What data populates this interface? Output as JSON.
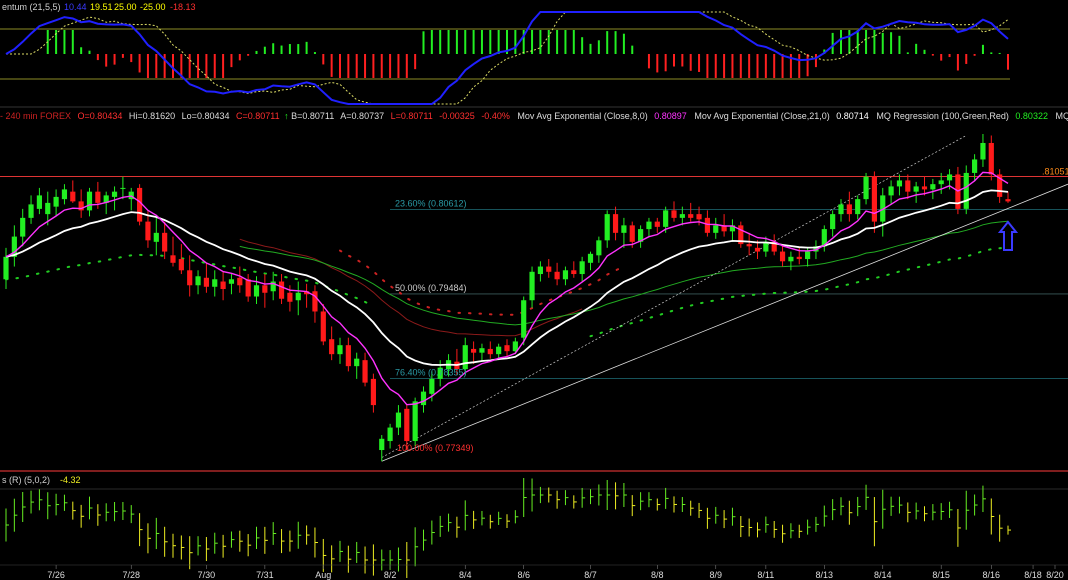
{
  "colors": {
    "background": "#000000",
    "up": "#22ee22",
    "down": "#ff1a1a",
    "ema8": "#ff33ff",
    "ema21": "#ffffff",
    "regression": "#22aa22",
    "trend": "#cc2222",
    "fib": "#1f6f78",
    "level": "#ff3b3b",
    "momentum_line": "#2020ff",
    "signal_line": "#dddd66",
    "osc_up": "#66ee22",
    "osc_down": "#eeee22",
    "arrow": "#3a3aff"
  },
  "momentum_panel": {
    "title": "entum (21,5,5)",
    "values": [
      "10.44",
      "19.51",
      "25.00",
      "-25.00",
      "-18.13"
    ],
    "value_colors": [
      "#3a3aff",
      "#ffff00",
      "#ffff00",
      "#ffff00",
      "#ff3030"
    ]
  },
  "price_header": {
    "prefix": "- 240 min  FOREX",
    "open": "O=0.80434",
    "high": "Hi=0.81620",
    "low": "Lo=0.80434",
    "close": "C=0.80711",
    "arrow": "↑",
    "bid": "B=0.80711",
    "ask": "A=0.80737",
    "last": "L=0.80711",
    "change": "-0.00325",
    "change_pct": "-0.40%",
    "ema8_label": "Mov Avg Exponential (Close,8,0)",
    "ema8_value": "0.80897",
    "ema21_label": "Mov Avg Exponential (Close,21,0)",
    "ema21_value": "0.80714",
    "regression_label": "MQ Regression (100,Green,Red)",
    "regression_value": "0.80322",
    "trend_label": "MQ Trend (Close"
  },
  "oscillator_panel": {
    "title": "s (R) (5,0,2)",
    "value": "-4.32"
  },
  "price_axis": {
    "level_label": ".81051"
  },
  "fib_labels": {
    "fib236": "23.60% (0.80612)",
    "fib50": "50.00% (0.79484)",
    "fib764": "76.40% (0.78355)",
    "fib100": "100.00% (0.77349)"
  },
  "chart_data": {
    "type": "candlestick",
    "instrument": "FOREX",
    "interval": "240 min",
    "x_tick_labels": [
      "7/26",
      "7/28",
      "7/30",
      "7/31",
      "Aug",
      "8/2",
      "8/4",
      "8/6",
      "8/7",
      "8/8",
      "8/9",
      "8/11",
      "8/13",
      "8/14",
      "8/15",
      "8/16",
      "8/18",
      "8/20"
    ],
    "ylim": [
      0.7712,
      0.8174
    ],
    "resistance_level": 0.81051,
    "fib_levels": [
      {
        "label": "23.60%",
        "value": 0.80612
      },
      {
        "label": "50.00%",
        "value": 0.79484
      },
      {
        "label": "76.40%",
        "value": 0.78355
      },
      {
        "label": "100.00%",
        "value": 0.77349
      }
    ],
    "candles": [
      {
        "o": 0.7968,
        "h": 0.801,
        "l": 0.7955,
        "c": 0.7998
      },
      {
        "o": 0.7998,
        "h": 0.804,
        "l": 0.7985,
        "c": 0.8025
      },
      {
        "o": 0.8025,
        "h": 0.8062,
        "l": 0.8012,
        "c": 0.805
      },
      {
        "o": 0.805,
        "h": 0.808,
        "l": 0.8042,
        "c": 0.8068
      },
      {
        "o": 0.8062,
        "h": 0.809,
        "l": 0.8055,
        "c": 0.808
      },
      {
        "o": 0.8055,
        "h": 0.8085,
        "l": 0.804,
        "c": 0.807
      },
      {
        "o": 0.8065,
        "h": 0.8088,
        "l": 0.8052,
        "c": 0.8078
      },
      {
        "o": 0.8075,
        "h": 0.8095,
        "l": 0.8068,
        "c": 0.8088
      },
      {
        "o": 0.8085,
        "h": 0.81,
        "l": 0.807,
        "c": 0.8072
      },
      {
        "o": 0.8072,
        "h": 0.8088,
        "l": 0.805,
        "c": 0.806
      },
      {
        "o": 0.806,
        "h": 0.809,
        "l": 0.8052,
        "c": 0.8085
      },
      {
        "o": 0.8085,
        "h": 0.8098,
        "l": 0.8062,
        "c": 0.807
      },
      {
        "o": 0.807,
        "h": 0.8085,
        "l": 0.8055,
        "c": 0.808
      },
      {
        "o": 0.8078,
        "h": 0.8092,
        "l": 0.806,
        "c": 0.8085
      },
      {
        "o": 0.809,
        "h": 0.8105,
        "l": 0.8075,
        "c": 0.809
      },
      {
        "o": 0.8075,
        "h": 0.809,
        "l": 0.806,
        "c": 0.8085
      },
      {
        "o": 0.809,
        "h": 0.8095,
        "l": 0.804,
        "c": 0.8045
      },
      {
        "o": 0.8045,
        "h": 0.806,
        "l": 0.801,
        "c": 0.802
      },
      {
        "o": 0.8018,
        "h": 0.8052,
        "l": 0.8,
        "c": 0.803
      },
      {
        "o": 0.803,
        "h": 0.8045,
        "l": 0.7995,
        "c": 0.8005
      },
      {
        "o": 0.8,
        "h": 0.8025,
        "l": 0.7985,
        "c": 0.799
      },
      {
        "o": 0.7995,
        "h": 0.8015,
        "l": 0.7975,
        "c": 0.798
      },
      {
        "o": 0.798,
        "h": 0.8,
        "l": 0.7945,
        "c": 0.796
      },
      {
        "o": 0.796,
        "h": 0.798,
        "l": 0.7948,
        "c": 0.7972
      },
      {
        "o": 0.797,
        "h": 0.799,
        "l": 0.795,
        "c": 0.7958
      },
      {
        "o": 0.7958,
        "h": 0.798,
        "l": 0.7945,
        "c": 0.7968
      },
      {
        "o": 0.7965,
        "h": 0.7978,
        "l": 0.794,
        "c": 0.7955
      },
      {
        "o": 0.7962,
        "h": 0.7975,
        "l": 0.7948,
        "c": 0.7968
      },
      {
        "o": 0.797,
        "h": 0.7985,
        "l": 0.795,
        "c": 0.796
      },
      {
        "o": 0.7968,
        "h": 0.7975,
        "l": 0.7938,
        "c": 0.7945
      },
      {
        "o": 0.7945,
        "h": 0.7972,
        "l": 0.7935,
        "c": 0.796
      },
      {
        "o": 0.796,
        "h": 0.7975,
        "l": 0.793,
        "c": 0.795
      },
      {
        "o": 0.7952,
        "h": 0.7978,
        "l": 0.794,
        "c": 0.7965
      },
      {
        "o": 0.7965,
        "h": 0.7975,
        "l": 0.7935,
        "c": 0.7942
      },
      {
        "o": 0.795,
        "h": 0.796,
        "l": 0.7925,
        "c": 0.7938
      },
      {
        "o": 0.794,
        "h": 0.7965,
        "l": 0.792,
        "c": 0.795
      },
      {
        "o": 0.7952,
        "h": 0.7962,
        "l": 0.793,
        "c": 0.7948
      },
      {
        "o": 0.7952,
        "h": 0.796,
        "l": 0.791,
        "c": 0.7925
      },
      {
        "o": 0.7925,
        "h": 0.7935,
        "l": 0.788,
        "c": 0.7885
      },
      {
        "o": 0.7888,
        "h": 0.7905,
        "l": 0.786,
        "c": 0.7868
      },
      {
        "o": 0.7868,
        "h": 0.789,
        "l": 0.7855,
        "c": 0.788
      },
      {
        "o": 0.788,
        "h": 0.789,
        "l": 0.7845,
        "c": 0.7852
      },
      {
        "o": 0.7852,
        "h": 0.787,
        "l": 0.7835,
        "c": 0.7862
      },
      {
        "o": 0.786,
        "h": 0.787,
        "l": 0.7825,
        "c": 0.783
      },
      {
        "o": 0.7835,
        "h": 0.7842,
        "l": 0.779,
        "c": 0.78
      },
      {
        "o": 0.774,
        "h": 0.776,
        "l": 0.7725,
        "c": 0.7755
      },
      {
        "o": 0.7752,
        "h": 0.7775,
        "l": 0.7742,
        "c": 0.777
      },
      {
        "o": 0.777,
        "h": 0.78,
        "l": 0.776,
        "c": 0.779
      },
      {
        "o": 0.7795,
        "h": 0.78,
        "l": 0.774,
        "c": 0.7752
      },
      {
        "o": 0.7752,
        "h": 0.781,
        "l": 0.7745,
        "c": 0.7805
      },
      {
        "o": 0.78,
        "h": 0.7825,
        "l": 0.779,
        "c": 0.7818
      },
      {
        "o": 0.7815,
        "h": 0.7845,
        "l": 0.7805,
        "c": 0.7835
      },
      {
        "o": 0.7835,
        "h": 0.786,
        "l": 0.7825,
        "c": 0.785
      },
      {
        "o": 0.7848,
        "h": 0.7868,
        "l": 0.7838,
        "c": 0.786
      },
      {
        "o": 0.7858,
        "h": 0.7875,
        "l": 0.784,
        "c": 0.7848
      },
      {
        "o": 0.7848,
        "h": 0.789,
        "l": 0.784,
        "c": 0.788
      },
      {
        "o": 0.7875,
        "h": 0.7885,
        "l": 0.7855,
        "c": 0.787
      },
      {
        "o": 0.787,
        "h": 0.7882,
        "l": 0.7858,
        "c": 0.7876
      },
      {
        "o": 0.7875,
        "h": 0.7885,
        "l": 0.7862,
        "c": 0.7868
      },
      {
        "o": 0.7868,
        "h": 0.7882,
        "l": 0.786,
        "c": 0.7878
      },
      {
        "o": 0.788,
        "h": 0.7888,
        "l": 0.7865,
        "c": 0.7872
      },
      {
        "o": 0.7872,
        "h": 0.789,
        "l": 0.7868,
        "c": 0.7885
      },
      {
        "o": 0.789,
        "h": 0.7945,
        "l": 0.788,
        "c": 0.794
      },
      {
        "o": 0.794,
        "h": 0.7985,
        "l": 0.793,
        "c": 0.7978
      },
      {
        "o": 0.7975,
        "h": 0.7992,
        "l": 0.7965,
        "c": 0.7985
      },
      {
        "o": 0.7985,
        "h": 0.7995,
        "l": 0.797,
        "c": 0.7978
      },
      {
        "o": 0.7978,
        "h": 0.799,
        "l": 0.796,
        "c": 0.7968
      },
      {
        "o": 0.7968,
        "h": 0.7985,
        "l": 0.796,
        "c": 0.798
      },
      {
        "o": 0.798,
        "h": 0.7992,
        "l": 0.797,
        "c": 0.7975
      },
      {
        "o": 0.7975,
        "h": 0.7998,
        "l": 0.7965,
        "c": 0.7992
      },
      {
        "o": 0.799,
        "h": 0.8005,
        "l": 0.798,
        "c": 0.8002
      },
      {
        "o": 0.8,
        "h": 0.8025,
        "l": 0.799,
        "c": 0.802
      },
      {
        "o": 0.802,
        "h": 0.806,
        "l": 0.801,
        "c": 0.8055
      },
      {
        "o": 0.8055,
        "h": 0.8065,
        "l": 0.802,
        "c": 0.803
      },
      {
        "o": 0.803,
        "h": 0.805,
        "l": 0.801,
        "c": 0.804
      },
      {
        "o": 0.804,
        "h": 0.8045,
        "l": 0.801,
        "c": 0.8018
      },
      {
        "o": 0.8018,
        "h": 0.804,
        "l": 0.801,
        "c": 0.8035
      },
      {
        "o": 0.8035,
        "h": 0.805,
        "l": 0.8025,
        "c": 0.8045
      },
      {
        "o": 0.8045,
        "h": 0.805,
        "l": 0.803,
        "c": 0.8038
      },
      {
        "o": 0.8038,
        "h": 0.8065,
        "l": 0.803,
        "c": 0.806
      },
      {
        "o": 0.806,
        "h": 0.8072,
        "l": 0.8045,
        "c": 0.805
      },
      {
        "o": 0.805,
        "h": 0.8065,
        "l": 0.804,
        "c": 0.8055
      },
      {
        "o": 0.8055,
        "h": 0.807,
        "l": 0.8045,
        "c": 0.805
      },
      {
        "o": 0.8055,
        "h": 0.8065,
        "l": 0.804,
        "c": 0.8048
      },
      {
        "o": 0.805,
        "h": 0.806,
        "l": 0.8025,
        "c": 0.803
      },
      {
        "o": 0.803,
        "h": 0.805,
        "l": 0.8022,
        "c": 0.804
      },
      {
        "o": 0.804,
        "h": 0.8055,
        "l": 0.8025,
        "c": 0.8032
      },
      {
        "o": 0.8032,
        "h": 0.8048,
        "l": 0.8018,
        "c": 0.804
      },
      {
        "o": 0.804,
        "h": 0.8045,
        "l": 0.801,
        "c": 0.8015
      },
      {
        "o": 0.8015,
        "h": 0.803,
        "l": 0.8,
        "c": 0.8012
      },
      {
        "o": 0.801,
        "h": 0.802,
        "l": 0.7995,
        "c": 0.8005
      },
      {
        "o": 0.8005,
        "h": 0.8025,
        "l": 0.7998,
        "c": 0.8018
      },
      {
        "o": 0.8018,
        "h": 0.8028,
        "l": 0.8,
        "c": 0.8005
      },
      {
        "o": 0.8005,
        "h": 0.8015,
        "l": 0.7985,
        "c": 0.7992
      },
      {
        "o": 0.7992,
        "h": 0.8005,
        "l": 0.798,
        "c": 0.7998
      },
      {
        "o": 0.7998,
        "h": 0.801,
        "l": 0.7988,
        "c": 0.7995
      },
      {
        "o": 0.7995,
        "h": 0.801,
        "l": 0.7985,
        "c": 0.8005
      },
      {
        "o": 0.8005,
        "h": 0.802,
        "l": 0.7995,
        "c": 0.8012
      },
      {
        "o": 0.8012,
        "h": 0.804,
        "l": 0.8005,
        "c": 0.8035
      },
      {
        "o": 0.8035,
        "h": 0.806,
        "l": 0.8025,
        "c": 0.8055
      },
      {
        "o": 0.8055,
        "h": 0.8075,
        "l": 0.8045,
        "c": 0.8068
      },
      {
        "o": 0.8068,
        "h": 0.8085,
        "l": 0.8045,
        "c": 0.8055
      },
      {
        "o": 0.8055,
        "h": 0.808,
        "l": 0.8048,
        "c": 0.8075
      },
      {
        "o": 0.8075,
        "h": 0.811,
        "l": 0.8068,
        "c": 0.8105
      },
      {
        "o": 0.8105,
        "h": 0.8112,
        "l": 0.803,
        "c": 0.8045
      },
      {
        "o": 0.8045,
        "h": 0.809,
        "l": 0.8025,
        "c": 0.808
      },
      {
        "o": 0.808,
        "h": 0.81,
        "l": 0.8068,
        "c": 0.8092
      },
      {
        "o": 0.8092,
        "h": 0.8108,
        "l": 0.808,
        "c": 0.81
      },
      {
        "o": 0.81,
        "h": 0.8108,
        "l": 0.8075,
        "c": 0.8085
      },
      {
        "o": 0.8085,
        "h": 0.8098,
        "l": 0.807,
        "c": 0.8092
      },
      {
        "o": 0.8092,
        "h": 0.8105,
        "l": 0.808,
        "c": 0.8088
      },
      {
        "o": 0.8088,
        "h": 0.8102,
        "l": 0.8075,
        "c": 0.8095
      },
      {
        "o": 0.8095,
        "h": 0.811,
        "l": 0.8082,
        "c": 0.81
      },
      {
        "o": 0.81,
        "h": 0.8115,
        "l": 0.8088,
        "c": 0.8108
      },
      {
        "o": 0.8108,
        "h": 0.8118,
        "l": 0.8055,
        "c": 0.8062
      },
      {
        "o": 0.8062,
        "h": 0.812,
        "l": 0.8055,
        "c": 0.811
      },
      {
        "o": 0.811,
        "h": 0.8135,
        "l": 0.81,
        "c": 0.8128
      },
      {
        "o": 0.8128,
        "h": 0.8162,
        "l": 0.8118,
        "c": 0.815
      },
      {
        "o": 0.815,
        "h": 0.816,
        "l": 0.81,
        "c": 0.8108
      },
      {
        "o": 0.8108,
        "h": 0.8115,
        "l": 0.807,
        "c": 0.8078
      },
      {
        "o": 0.8075,
        "h": 0.8085,
        "l": 0.807,
        "c": 0.8072
      }
    ],
    "series": [
      {
        "name": "Mov Avg Exponential (Close,8,0)",
        "color": "#ff33ff",
        "computed_from": "close",
        "period": 8,
        "last_value": 0.80897
      },
      {
        "name": "Mov Avg Exponential (Close,21,0)",
        "color": "#ffffff",
        "computed_from": "close",
        "period": 21,
        "last_value": 0.80714
      },
      {
        "name": "MQ Regression (100,Green,Red)",
        "color": "#22aa22",
        "last_value": 0.80322
      },
      {
        "name": "MQ Trend (Close",
        "color": "#cc2222"
      }
    ],
    "momentum": {
      "title": "entum (21,5,5)",
      "upper_level": 25.0,
      "lower_level": -25.0,
      "last_line": 10.44,
      "histogram_last": -18.13
    },
    "oscillator": {
      "title": "s (R) (5,0,2)",
      "last": -4.32
    },
    "annotations": [
      "blue up-arrow below last candle"
    ]
  }
}
